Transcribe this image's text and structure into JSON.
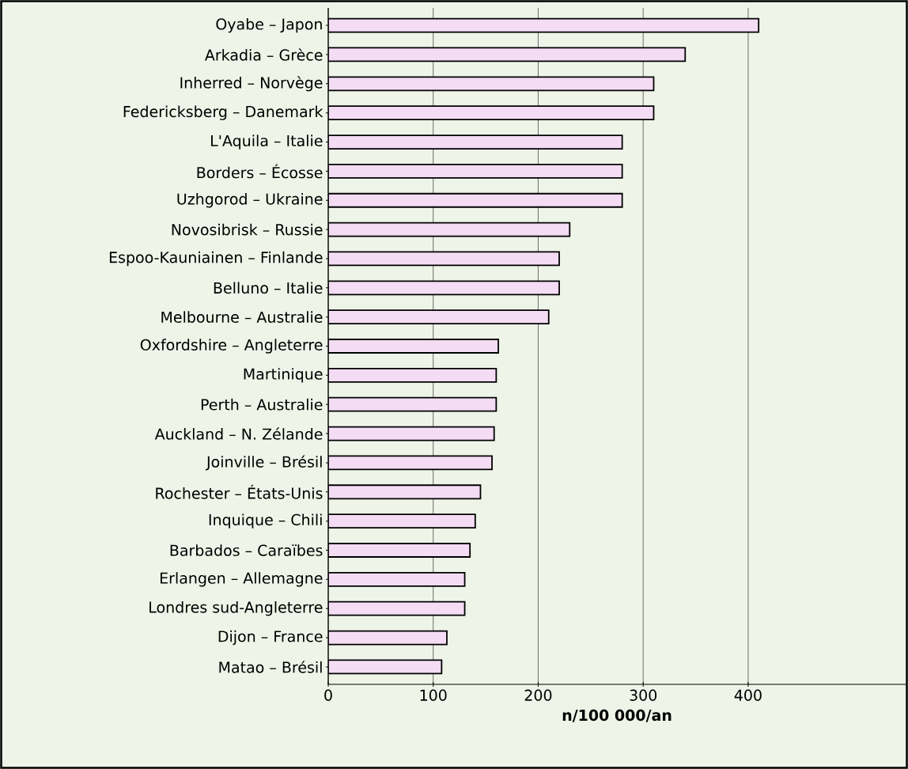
{
  "chart_data": {
    "type": "bar",
    "orientation": "horizontal",
    "xlabel": "n/100 000/an",
    "categories": [
      "Oyabe – Japon",
      "Arkadia – Grèce",
      "Inherred – Norvège",
      "Federicksberg – Danemark",
      "L'Aquila – Italie",
      "Borders – Écosse",
      "Uzhgorod – Ukraine",
      "Novosibrisk – Russie",
      "Espoo-Kauniainen – Finlande",
      "Belluno – Italie",
      "Melbourne – Australie",
      "Oxfordshire – Angleterre",
      "Martinique",
      "Perth – Australie",
      "Auckland – N. Zélande",
      "Joinville – Brésil",
      "Rochester – États-Unis",
      "Inquique – Chili",
      "Barbados – Caraïbes",
      "Erlangen – Allemagne",
      "Londres sud-Angleterre",
      "Dijon – France",
      "Matao – Brésil"
    ],
    "values": [
      410,
      340,
      310,
      310,
      280,
      280,
      280,
      230,
      220,
      220,
      210,
      162,
      160,
      160,
      158,
      156,
      145,
      140,
      135,
      130,
      130,
      113,
      108
    ],
    "color": "#f4dcf4",
    "xlim": [
      0,
      550
    ],
    "xticks": [
      0,
      100,
      200,
      300,
      400
    ],
    "grid": "x"
  }
}
